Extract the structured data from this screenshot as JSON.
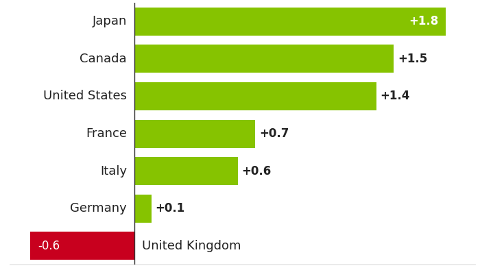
{
  "chart_data": {
    "type": "bar",
    "orientation": "horizontal",
    "categories": [
      "Japan",
      "Canada",
      "United States",
      "France",
      "Italy",
      "Germany",
      "United Kingdom"
    ],
    "values": [
      1.8,
      1.5,
      1.4,
      0.7,
      0.6,
      0.1,
      -0.6
    ],
    "value_labels": [
      "+1.8",
      "+1.5",
      "+1.4",
      "+0.7",
      "+0.6",
      "+0.1",
      "-0.6"
    ],
    "colors": [
      "#86c300",
      "#86c300",
      "#86c300",
      "#86c300",
      "#86c300",
      "#86c300",
      "#c8001e"
    ],
    "xlim": [
      -0.72,
      1.97
    ],
    "xticks": [],
    "data_labels": true,
    "tick_labels": false,
    "grid": false
  }
}
